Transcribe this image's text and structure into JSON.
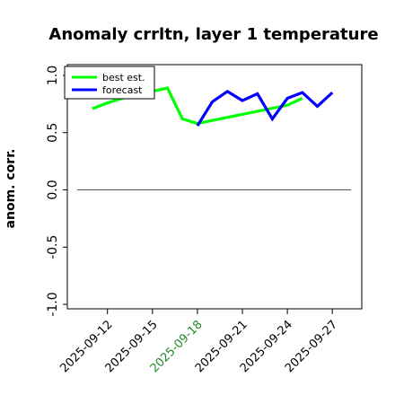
{
  "chart_data": {
    "type": "line",
    "title": "Anomaly crrltn, layer 1 temperature",
    "ylabel": "anom. corr.",
    "xlabel": "",
    "ylim": [
      -1.0,
      1.0
    ],
    "yticks": [
      "-1.0",
      "-0.5",
      "0.0",
      "0.5",
      "1.0"
    ],
    "ytick_values": [
      -1.0,
      -0.5,
      0.0,
      0.5,
      1.0
    ],
    "x": [
      "2025-09-11",
      "2025-09-12",
      "2025-09-13",
      "2025-09-14",
      "2025-09-15",
      "2025-09-16",
      "2025-09-17",
      "2025-09-18",
      "2025-09-19",
      "2025-09-20",
      "2025-09-21",
      "2025-09-22",
      "2025-09-23",
      "2025-09-24",
      "2025-09-25",
      "2025-09-26",
      "2025-09-27"
    ],
    "xticks": [
      {
        "label": "2025-09-12",
        "color": "#000000"
      },
      {
        "label": "2025-09-15",
        "color": "#000000"
      },
      {
        "label": "2025-09-18",
        "color": "#228b22"
      },
      {
        "label": "2025-09-21",
        "color": "#000000"
      },
      {
        "label": "2025-09-24",
        "color": "#000000"
      },
      {
        "label": "2025-09-27",
        "color": "#000000"
      }
    ],
    "series": [
      {
        "name": "best est.",
        "color": "#00ff00",
        "values": [
          0.71,
          0.76,
          0.8,
          0.84,
          0.86,
          0.89,
          0.62,
          0.58,
          null,
          null,
          null,
          null,
          null,
          0.74,
          0.8,
          null,
          null
        ]
      },
      {
        "name": "forecast",
        "color": "#0000ff",
        "values": [
          null,
          null,
          null,
          null,
          null,
          null,
          null,
          0.56,
          0.77,
          0.86,
          0.78,
          0.84,
          0.62,
          0.8,
          0.85,
          0.73,
          0.85
        ]
      }
    ],
    "reference_line": 0.0,
    "legend": "top-left"
  }
}
